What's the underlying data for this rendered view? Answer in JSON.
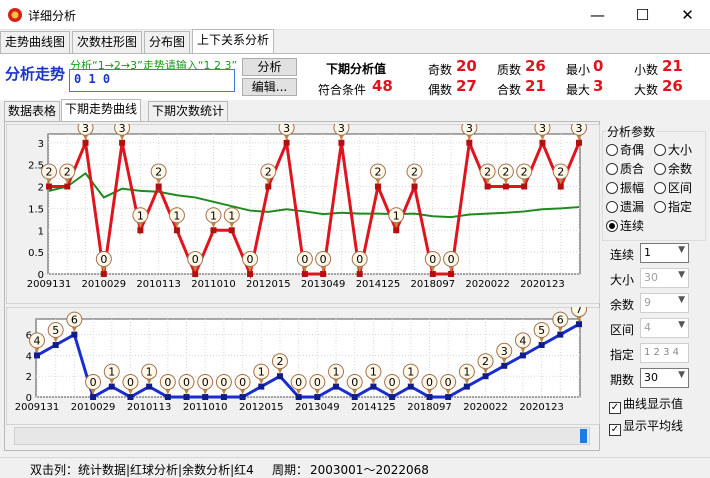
{
  "window": {
    "title": "详细分析",
    "minimize": "—",
    "maximize": "☐",
    "close": "✕"
  },
  "main_tabs": [
    "走势曲线图",
    "次数柱形图",
    "分布图",
    "上下关系分析"
  ],
  "top": {
    "label": "分析走势",
    "hint": "分析“1→2→3”走势请输入“1 2 3”",
    "input_value": "0 1 0",
    "analyze_button": "分析",
    "edit_button": "编辑...",
    "next_title": "下期分析值",
    "match_label": "符合条件",
    "match_value": "48",
    "stats": [
      {
        "label": "奇数",
        "value": "20"
      },
      {
        "label": "质数",
        "value": "26"
      },
      {
        "label": "最小",
        "value": "0"
      },
      {
        "label": "小数",
        "value": "21"
      },
      {
        "label": "偶数",
        "value": "27"
      },
      {
        "label": "合数",
        "value": "21"
      },
      {
        "label": "最大",
        "value": "3"
      },
      {
        "label": "大数",
        "value": "26"
      }
    ]
  },
  "sub_tabs": [
    "数据表格",
    "下期走势曲线",
    "下期次数统计"
  ],
  "right_panel": {
    "group_title": "分析参数",
    "radios": [
      "奇偶",
      "大小",
      "质合",
      "余数",
      "振幅",
      "区间",
      "遗漏",
      "指定",
      "连续"
    ],
    "selected_radio": "连续",
    "fields": [
      {
        "label": "连续",
        "value": "1",
        "enabled": true
      },
      {
        "label": "大小",
        "value": "30",
        "enabled": false
      },
      {
        "label": "余数",
        "value": "9",
        "enabled": false
      },
      {
        "label": "区间",
        "value": "4",
        "enabled": false
      }
    ],
    "specify_label": "指定",
    "specify_value": "1 2 3 4",
    "periods_label": "期数",
    "periods_value": "30",
    "checks": [
      {
        "label": "曲线显示值",
        "checked": true
      },
      {
        "label": "显示平均线",
        "checked": true
      }
    ]
  },
  "status": {
    "hint": "双击列：统计数据|红球分析|余数分析|红4",
    "period_label": "周期：",
    "period_value": "2003001～2022068"
  },
  "chart_data": [
    {
      "type": "line",
      "x_tick_labels": [
        "2009131",
        "2010029",
        "2010113",
        "2011010",
        "2012015",
        "2013049",
        "2014125",
        "2018097",
        "2020022",
        "2020123"
      ],
      "y_ticks": [
        0,
        0.5,
        1,
        1.5,
        2,
        2.5,
        3
      ],
      "ylim": [
        0,
        3.2
      ],
      "values": [
        2,
        2,
        3,
        0,
        3,
        1,
        2,
        1,
        0,
        1,
        1,
        0,
        2,
        3,
        0,
        0,
        3,
        0,
        2,
        1,
        2,
        0,
        0,
        3,
        2,
        2,
        2,
        3,
        2,
        3
      ],
      "average": [
        1.9,
        2.0,
        2.3,
        1.75,
        1.95,
        1.9,
        1.88,
        1.8,
        1.75,
        1.65,
        1.55,
        1.45,
        1.42,
        1.48,
        1.43,
        1.37,
        1.4,
        1.38,
        1.38,
        1.37,
        1.38,
        1.32,
        1.3,
        1.36,
        1.38,
        1.4,
        1.43,
        1.48,
        1.5,
        1.53
      ],
      "line_color": "#e0141e",
      "average_color": "#1f8a1f",
      "grid": true
    },
    {
      "type": "line",
      "x_tick_labels": [
        "2009131",
        "2010029",
        "2010113",
        "2011010",
        "2012015",
        "2013049",
        "2014125",
        "2018097",
        "2020022",
        "2020123"
      ],
      "y_ticks": [
        0,
        2,
        4,
        6
      ],
      "ylim": [
        0,
        7.5
      ],
      "values": [
        4,
        5,
        6,
        0,
        1,
        0,
        1,
        0,
        0,
        0,
        0,
        0,
        1,
        2,
        0,
        0,
        1,
        0,
        1,
        0,
        1,
        0,
        0,
        1,
        2,
        3,
        4,
        5,
        6,
        7
      ],
      "line_color": "#1a2ed0",
      "grid": true
    }
  ]
}
